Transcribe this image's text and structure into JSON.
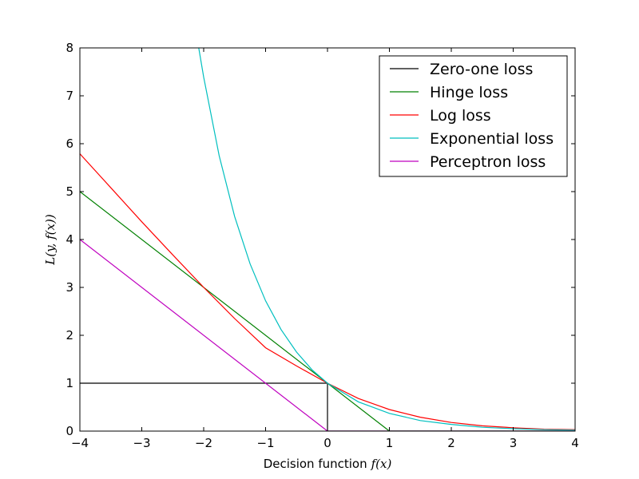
{
  "chart_data": {
    "type": "line",
    "xlabel": "Decision function",
    "xlabel_math": "f(x)",
    "ylabel": "L(y, f(x))",
    "xlim": [
      -4,
      4
    ],
    "ylim": [
      0,
      8
    ],
    "xticks": [
      -4,
      -3,
      -2,
      -1,
      0,
      1,
      2,
      3,
      4
    ],
    "yticks": [
      0,
      1,
      2,
      3,
      4,
      5,
      6,
      7,
      8
    ],
    "xtick_labels": [
      "−4",
      "−3",
      "−2",
      "−1",
      "0",
      "1",
      "2",
      "3",
      "4"
    ],
    "ytick_labels": [
      "0",
      "1",
      "2",
      "3",
      "4",
      "5",
      "6",
      "7",
      "8"
    ],
    "grid": false,
    "legend_position": "top-right",
    "series": [
      {
        "name": "Zero-one loss",
        "color": "#000000",
        "x": [
          -4,
          0,
          0,
          4
        ],
        "y": [
          1,
          1,
          0,
          0
        ]
      },
      {
        "name": "Hinge loss",
        "color": "#008000",
        "x": [
          -4,
          1,
          4
        ],
        "y": [
          5,
          0,
          0
        ]
      },
      {
        "name": "Log loss",
        "color": "#ff0000",
        "x": [
          -4,
          -3.5,
          -3,
          -2.5,
          -2,
          -1.5,
          -1,
          -0.5,
          0,
          0.5,
          1,
          1.5,
          2,
          2.5,
          3,
          3.5,
          4
        ],
        "y": [
          5.79,
          5.08,
          4.37,
          3.68,
          3.0,
          2.35,
          1.74,
          1.36,
          1.0,
          0.68,
          0.45,
          0.29,
          0.18,
          0.11,
          0.07,
          0.04,
          0.03
        ]
      },
      {
        "name": "Exponential loss",
        "color": "#00bfbf",
        "x": [
          -2.08,
          -2.0,
          -1.75,
          -1.5,
          -1.25,
          -1.0,
          -0.75,
          -0.5,
          -0.25,
          0,
          0.5,
          1,
          1.5,
          2,
          2.5,
          3,
          3.5,
          4
        ],
        "y": [
          8.0,
          7.39,
          5.75,
          4.48,
          3.49,
          2.72,
          2.12,
          1.65,
          1.28,
          1.0,
          0.61,
          0.37,
          0.22,
          0.14,
          0.08,
          0.05,
          0.03,
          0.02
        ]
      },
      {
        "name": "Perceptron loss",
        "color": "#bf00bf",
        "x": [
          -4,
          0,
          4
        ],
        "y": [
          4,
          0,
          0
        ]
      }
    ]
  }
}
